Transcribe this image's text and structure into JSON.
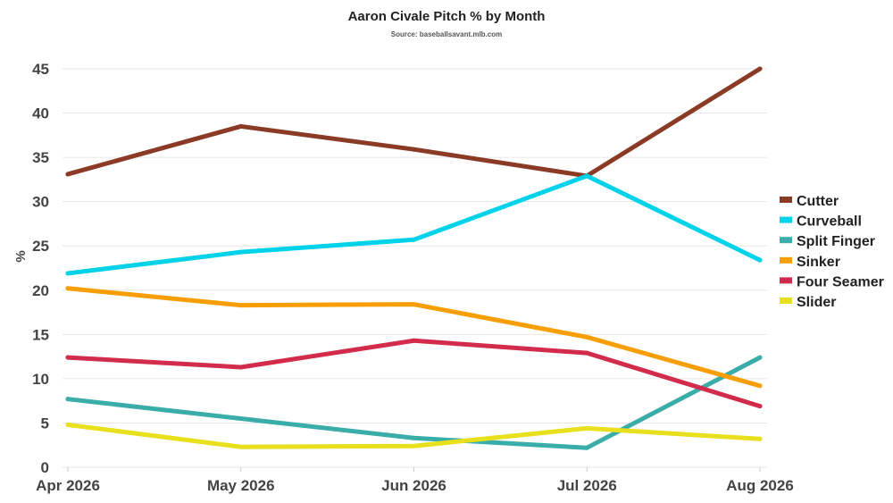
{
  "chart_data": {
    "type": "line",
    "title": "Aaron Civale Pitch % by Month",
    "subtitle": "Source: baseballsavant.mlb.com",
    "xlabel": "",
    "ylabel": "%",
    "categories": [
      "Apr 2026",
      "May 2026",
      "Jun 2026",
      "Jul 2026",
      "Aug 2026"
    ],
    "ylim": [
      0,
      45
    ],
    "yticks": [
      0,
      5,
      10,
      15,
      20,
      25,
      30,
      35,
      40,
      45
    ],
    "grid": true,
    "legend_position": "right",
    "series": [
      {
        "name": "Cutter",
        "color": "#8B3A26",
        "values": [
          33.1,
          38.5,
          35.9,
          32.9,
          45.0
        ]
      },
      {
        "name": "Curveball",
        "color": "#00D2EA",
        "values": [
          21.9,
          24.3,
          25.7,
          32.9,
          23.4
        ]
      },
      {
        "name": "Split Finger",
        "color": "#3BADA8",
        "values": [
          7.7,
          5.5,
          3.3,
          2.2,
          12.4
        ]
      },
      {
        "name": "Sinker",
        "color": "#F79E05",
        "values": [
          20.2,
          18.3,
          18.4,
          14.7,
          9.2
        ]
      },
      {
        "name": "Four Seamer",
        "color": "#D22B4B",
        "values": [
          12.4,
          11.3,
          14.3,
          12.9,
          6.9
        ]
      },
      {
        "name": "Slider",
        "color": "#E8E01C",
        "values": [
          4.8,
          2.3,
          2.4,
          4.4,
          3.2
        ]
      }
    ]
  }
}
